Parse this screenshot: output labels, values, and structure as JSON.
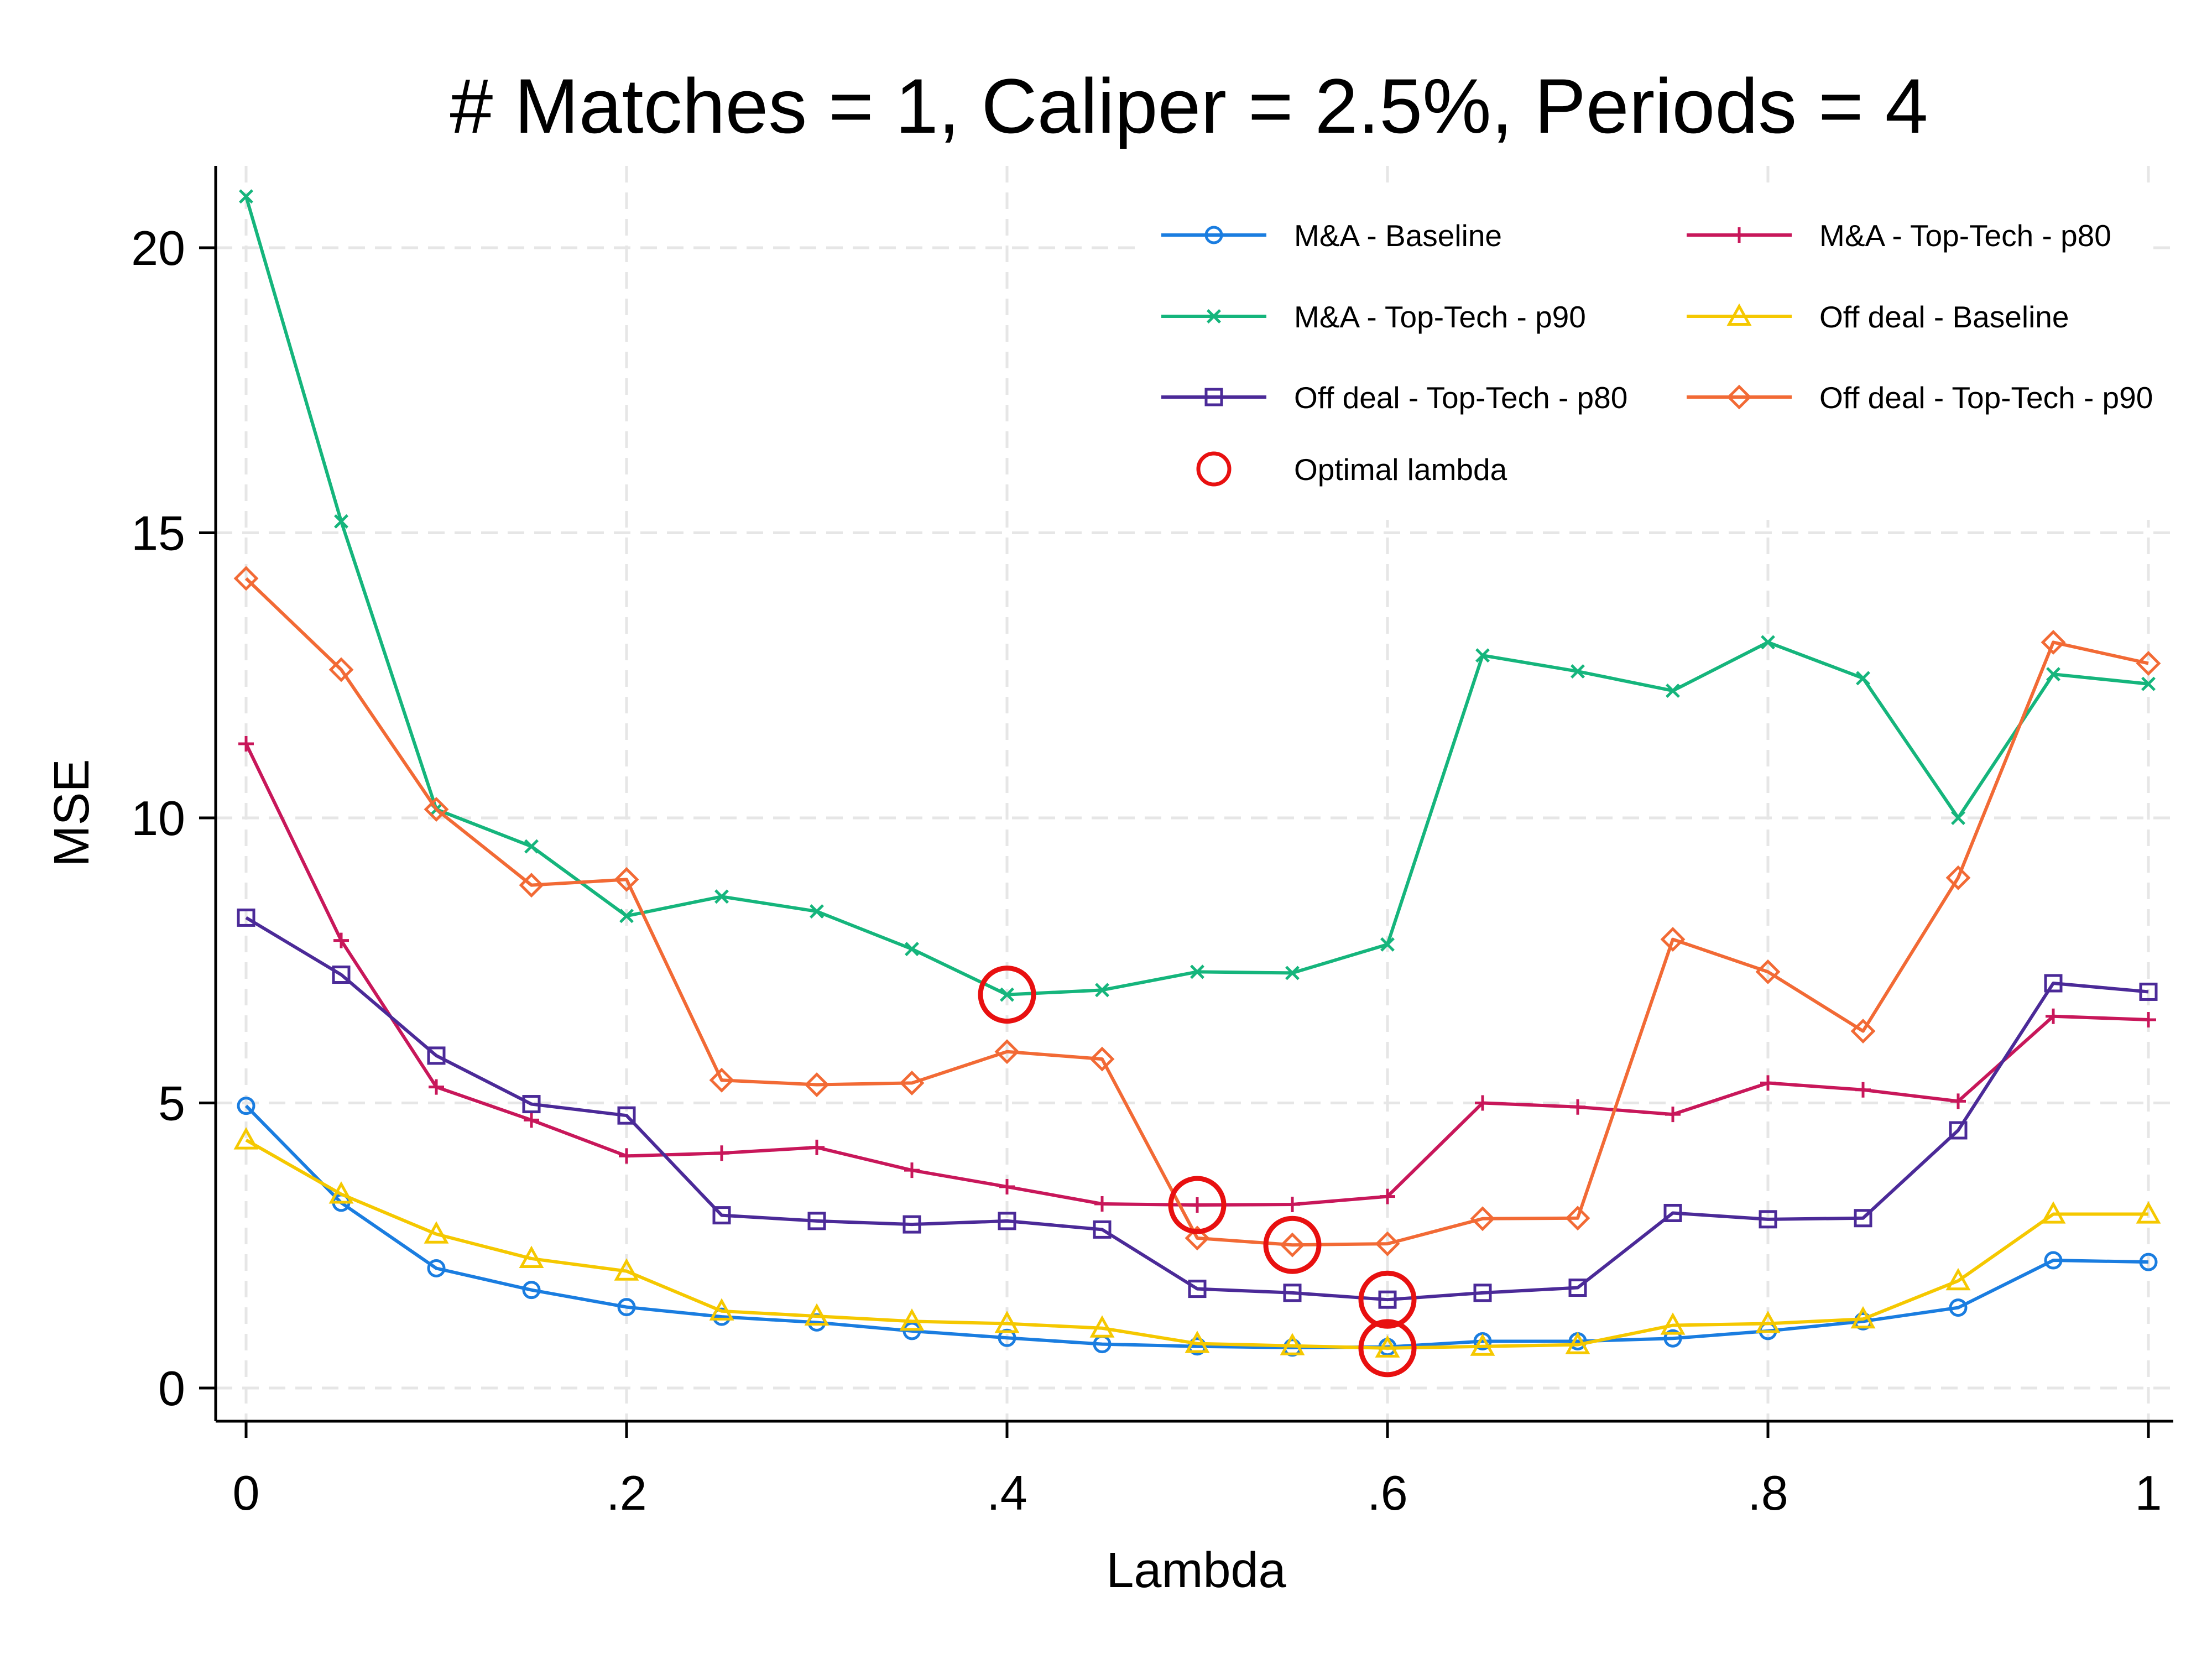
{
  "chart_data": {
    "type": "line",
    "title": "# Matches = 1, Caliper = 2.5%, Periods = 4",
    "xlabel": "Lambda",
    "ylabel": "MSE",
    "xlim": [
      0,
      1
    ],
    "ylim": [
      0,
      21
    ],
    "x_ticks": [
      0,
      0.2,
      0.4,
      0.6,
      0.8,
      1
    ],
    "x_tick_labels": [
      "0",
      ".2",
      ".4",
      ".6",
      ".8",
      "1"
    ],
    "y_ticks": [
      0,
      5,
      10,
      15,
      20
    ],
    "y_tick_labels": [
      "0",
      "5",
      "10",
      "15",
      "20"
    ],
    "grid": true,
    "legend_position": "top-right",
    "x": [
      0,
      0.05,
      0.1,
      0.15,
      0.2,
      0.25,
      0.3,
      0.35,
      0.4,
      0.45,
      0.5,
      0.55,
      0.6,
      0.65,
      0.7,
      0.75,
      0.8,
      0.85,
      0.9,
      0.95,
      1
    ],
    "series": [
      {
        "name": "M&A - Baseline",
        "color": "#1a7de0",
        "marker": "circle",
        "values": [
          4.95,
          3.25,
          2.1,
          1.72,
          1.42,
          1.25,
          1.15,
          1.0,
          0.88,
          0.77,
          0.73,
          0.71,
          0.72,
          0.82,
          0.82,
          0.87,
          1.0,
          1.17,
          1.41,
          2.24,
          2.21
        ]
      },
      {
        "name": "M&A - Top-Tech - p80",
        "color": "#c8175a",
        "marker": "plus",
        "values": [
          11.3,
          7.85,
          5.28,
          4.7,
          4.07,
          4.12,
          4.22,
          3.82,
          3.53,
          3.23,
          3.21,
          3.22,
          3.36,
          5.0,
          4.93,
          4.8,
          5.35,
          5.23,
          5.03,
          6.52,
          6.46
        ]
      },
      {
        "name": "M&A - Top-Tech - p90",
        "color": "#15b57c",
        "marker": "x",
        "values": [
          20.9,
          15.2,
          10.15,
          9.5,
          8.28,
          8.62,
          8.36,
          7.7,
          6.9,
          6.98,
          7.3,
          7.28,
          7.78,
          12.85,
          12.57,
          12.23,
          13.08,
          12.45,
          10.0,
          12.52,
          12.35
        ]
      },
      {
        "name": "Off deal - Baseline",
        "color": "#f5c800",
        "marker": "triangle",
        "values": [
          4.35,
          3.4,
          2.7,
          2.27,
          2.05,
          1.35,
          1.26,
          1.17,
          1.13,
          1.05,
          0.78,
          0.74,
          0.7,
          0.73,
          0.76,
          1.1,
          1.13,
          1.21,
          1.88,
          3.05,
          3.05
        ]
      },
      {
        "name": "Off deal - Top-Tech - p80",
        "color": "#4b2a98",
        "marker": "square",
        "values": [
          8.25,
          7.25,
          5.83,
          4.98,
          4.78,
          3.03,
          2.93,
          2.87,
          2.93,
          2.78,
          1.74,
          1.67,
          1.55,
          1.67,
          1.76,
          3.07,
          2.96,
          2.98,
          4.52,
          7.1,
          6.95
        ]
      },
      {
        "name": "Off deal - Top-Tech - p90",
        "color": "#f26a35",
        "marker": "diamond",
        "values": [
          14.2,
          12.6,
          10.15,
          8.82,
          8.92,
          5.4,
          5.32,
          5.35,
          5.9,
          5.77,
          2.63,
          2.51,
          2.53,
          2.97,
          2.98,
          7.87,
          7.3,
          6.26,
          8.95,
          13.08,
          12.71
        ]
      }
    ],
    "optimal_lambda": {
      "name": "Optimal lambda",
      "color": "#e81010",
      "points": [
        {
          "x": 0.4,
          "y": 6.9
        },
        {
          "x": 0.5,
          "y": 3.21
        },
        {
          "x": 0.55,
          "y": 2.51
        },
        {
          "x": 0.6,
          "y": 1.55
        },
        {
          "x": 0.6,
          "y": 0.7
        }
      ]
    },
    "legend_order": [
      "M&A - Baseline",
      "M&A - Top-Tech - p80",
      "M&A - Top-Tech - p90",
      "Off deal - Baseline",
      "Off deal - Top-Tech - p80",
      "Off deal - Top-Tech - p90",
      "Optimal lambda"
    ]
  }
}
